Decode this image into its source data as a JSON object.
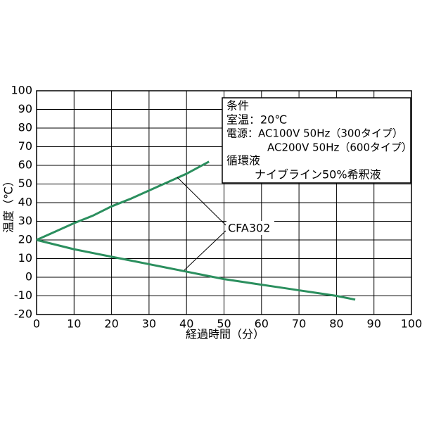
{
  "chart_data": {
    "type": "line",
    "xlabel": "経過時間（分）",
    "ylabel": "温度（℃）",
    "xlim": [
      0,
      100
    ],
    "xticks": [
      0,
      10,
      20,
      30,
      40,
      50,
      60,
      70,
      80,
      90,
      100
    ],
    "ylim": [
      -20,
      100
    ],
    "yticks": [
      -20,
      -10,
      0,
      10,
      20,
      30,
      40,
      50,
      60,
      70,
      80,
      90,
      100
    ],
    "grid": true,
    "series": [
      {
        "color": "#2b8f5e",
        "x": [
          0,
          5,
          10,
          15,
          20,
          25,
          30,
          35,
          40,
          46
        ],
        "values": [
          20,
          24.5,
          29,
          33,
          38,
          42,
          46.5,
          51,
          55.5,
          62
        ]
      },
      {
        "color": "#2b8f5e",
        "x": [
          0,
          5,
          10,
          15,
          20,
          25,
          30,
          35,
          40,
          45,
          50,
          55,
          60,
          65,
          70,
          75,
          80,
          85
        ],
        "values": [
          20,
          17.5,
          15,
          13,
          11,
          9,
          7,
          5,
          3,
          1,
          -1,
          -2.5,
          -4,
          -5.5,
          -7,
          -8.5,
          -10,
          -12
        ]
      }
    ],
    "annotation": "CFA302",
    "conditions": [
      "条件",
      "室温：20℃",
      "電源：AC100V 50Hz（300タイプ）",
      "AC200V 50Hz（600タイプ）",
      "循環液",
      "ナイブライン50%希釈液"
    ]
  }
}
